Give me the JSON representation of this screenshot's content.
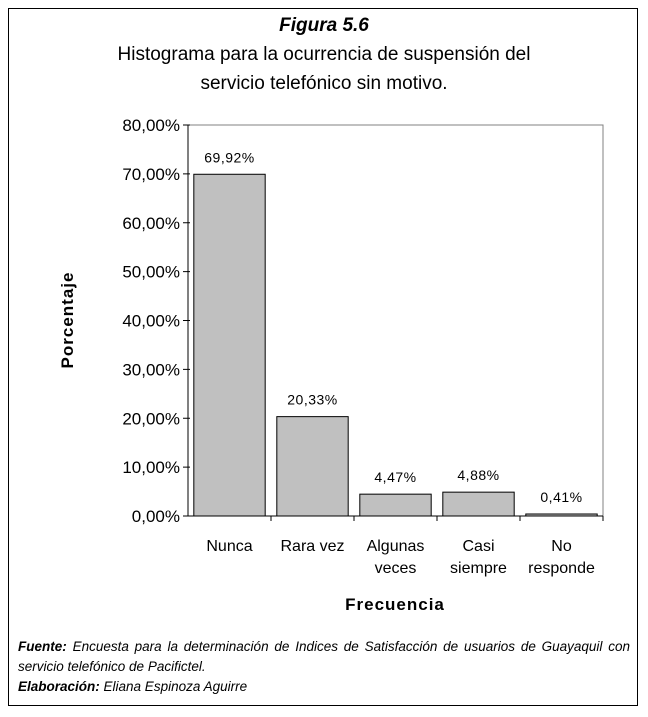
{
  "chart_data": {
    "type": "bar",
    "title": "Figura 5.6",
    "subtitle": [
      "Histograma para la ocurrencia de suspensión del",
      "servicio telefónico sin motivo."
    ],
    "categories": [
      [
        "Nunca"
      ],
      [
        "Rara vez"
      ],
      [
        "Algunas",
        "veces"
      ],
      [
        "Casi",
        "siempre"
      ],
      [
        "No",
        "responde"
      ]
    ],
    "values": [
      69.92,
      20.33,
      4.47,
      4.88,
      0.41
    ],
    "value_labels": [
      "69,92%",
      "20,33%",
      "4,47%",
      "4,88%",
      "0,41%"
    ],
    "color": "#c0c0c0",
    "ylim": [
      0,
      80
    ],
    "yticks": [
      {
        "value": 0,
        "label": "0,00%"
      },
      {
        "value": 10,
        "label": "10,00%"
      },
      {
        "value": 20,
        "label": "20,00%"
      },
      {
        "value": 30,
        "label": "30,00%"
      },
      {
        "value": 40,
        "label": "40,00%"
      },
      {
        "value": 50,
        "label": "50,00%"
      },
      {
        "value": 60,
        "label": "60,00%"
      },
      {
        "value": 70,
        "label": "70,00%"
      },
      {
        "value": 80,
        "label": "80,00%"
      }
    ],
    "xlabel": "Frecuencia",
    "ylabel": "Porcentaje",
    "grid": false
  },
  "notes": {
    "source_label": "Fuente:",
    "source": "Encuesta para la determinación de Indices de Satisfacción de usuarios de Guayaquil con servicio telefónico de Pacifictel.",
    "author_label": "Elaboración:",
    "author": "Eliana Espinoza Aguirre"
  }
}
